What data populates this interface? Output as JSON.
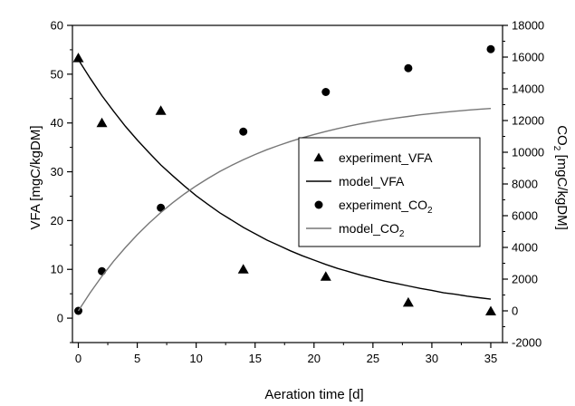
{
  "chart_data": {
    "type": "scatter",
    "xlabel": "Aeration time [d]",
    "ylabel_left": "VFA [mgC/kgDM]",
    "ylabel_right_main": "CO",
    "ylabel_right_sub": "2",
    "ylabel_right_rest": " [mgC/kgDM]",
    "xlim": [
      -0.5,
      36
    ],
    "ylim_left": [
      -5,
      60
    ],
    "ylim_right": [
      -2000,
      18000
    ],
    "x_ticks": [
      0,
      5,
      10,
      15,
      20,
      25,
      30,
      35
    ],
    "y_ticks_left": [
      0,
      10,
      20,
      30,
      40,
      50,
      60
    ],
    "y_ticks_right": [
      -2000,
      0,
      2000,
      4000,
      6000,
      8000,
      10000,
      12000,
      14000,
      16000,
      18000
    ],
    "grid": false,
    "legend_position": "center-right",
    "series": [
      {
        "name": "experiment_VFA",
        "kind": "markers",
        "marker": "triangle",
        "axis": "left",
        "x": [
          0,
          2,
          7,
          14,
          21,
          28,
          35
        ],
        "y": [
          53.3,
          40,
          42.5,
          10,
          8.5,
          3.2,
          1.4
        ]
      },
      {
        "name": "model_VFA",
        "kind": "line",
        "color": "#000000",
        "axis": "left",
        "x": [
          0,
          1,
          2,
          3,
          4,
          5,
          6,
          7,
          8,
          9,
          10,
          11,
          12,
          13,
          14,
          15,
          16,
          17,
          18,
          19,
          20,
          21,
          22,
          23,
          24,
          25,
          26,
          27,
          28,
          29,
          30,
          31,
          32,
          33,
          34,
          35
        ],
        "y": [
          53,
          49.2,
          45.6,
          42.4,
          39.3,
          36.5,
          33.9,
          31.4,
          29.2,
          27.1,
          25.1,
          23.3,
          21.6,
          20.1,
          18.6,
          17.3,
          16,
          14.9,
          13.8,
          12.8,
          11.9,
          11,
          10.2,
          9.5,
          8.8,
          8.2,
          7.6,
          7.1,
          6.6,
          6.1,
          5.7,
          5.2,
          4.9,
          4.5,
          4.2,
          3.9
        ]
      },
      {
        "name_main": "experiment_CO",
        "name_sub": "2",
        "kind": "markers",
        "marker": "circle",
        "axis": "right",
        "x": [
          0,
          2,
          7,
          14,
          21,
          28,
          35
        ],
        "y": [
          0,
          2500,
          6500,
          11300,
          13800,
          15300,
          16500
        ]
      },
      {
        "name_main": "model_CO",
        "name_sub": "2",
        "kind": "line",
        "color": "#777777",
        "axis": "right",
        "x": [
          0,
          1,
          2,
          3,
          4,
          5,
          6,
          7,
          8,
          9,
          10,
          11,
          12,
          13,
          14,
          15,
          16,
          17,
          18,
          19,
          20,
          21,
          22,
          23,
          24,
          25,
          26,
          27,
          28,
          29,
          30,
          31,
          32,
          33,
          34,
          35
        ],
        "y": [
          0,
          1140,
          2180,
          3130,
          4000,
          4800,
          5530,
          6200,
          6810,
          7370,
          7880,
          8350,
          8780,
          9170,
          9530,
          9860,
          10160,
          10430,
          10680,
          10910,
          11120,
          11310,
          11490,
          11650,
          11800,
          11930,
          12050,
          12160,
          12260,
          12360,
          12440,
          12520,
          12590,
          12650,
          12710,
          12760
        ]
      }
    ]
  }
}
